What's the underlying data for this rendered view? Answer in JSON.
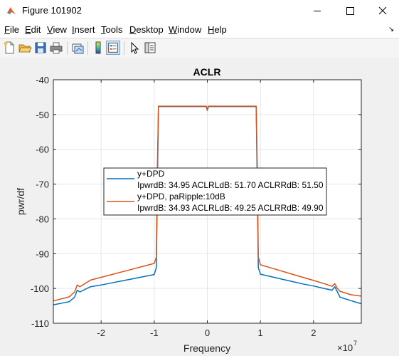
{
  "window": {
    "title": "Figure 101902",
    "icon": "matlab-icon",
    "controls": [
      "minimize-icon",
      "maximize-icon",
      "close-icon"
    ]
  },
  "menu": [
    {
      "label": "File",
      "underline": "F",
      "rest": "ile"
    },
    {
      "label": "Edit",
      "underline": "E",
      "rest": "dit"
    },
    {
      "label": "View",
      "underline": "V",
      "rest": "iew"
    },
    {
      "label": "Insert",
      "underline": "I",
      "rest": "nsert"
    },
    {
      "label": "Tools",
      "underline": "T",
      "rest": "ools"
    },
    {
      "label": "Desktop",
      "underline": "D",
      "rest": "esktop"
    },
    {
      "label": "Window",
      "underline": "W",
      "rest": "indow"
    },
    {
      "label": "Help",
      "underline": "H",
      "rest": "elp"
    }
  ],
  "toolbar": [
    "new-figure-icon",
    "open-file-icon",
    "save-icon",
    "print-icon",
    "link-plot-icon",
    "colorbar-icon",
    "legend-icon",
    "edit-plot-icon",
    "property-inspector-icon"
  ],
  "chart_data": {
    "type": "line",
    "title": "ACLR",
    "xlabel": "Frequency",
    "ylabel": "pwr/df",
    "x_exponent_label": "×10",
    "x_exponent": "7",
    "xlim": [
      -29000000.0,
      29000000.0
    ],
    "ylim": [
      -110,
      -40
    ],
    "xticks": [
      -20000000.0,
      -10000000.0,
      0,
      10000000.0,
      20000000.0
    ],
    "xtick_labels": [
      "-2",
      "-1",
      "0",
      "1",
      "2"
    ],
    "yticks": [
      -110,
      -100,
      -90,
      -80,
      -70,
      -60,
      -50,
      -40
    ],
    "ytick_labels": [
      "-110",
      "-100",
      "-90",
      "-80",
      "-70",
      "-60",
      "-50",
      "-40"
    ],
    "grid": true,
    "legend_position": "center-left",
    "series": [
      {
        "name": "y+DPD",
        "detail": "IpwrdB: 34.95 ACLRLdB: 51.70 ACLRRdB: 51.50",
        "color": "#0072bd",
        "x": [
          -29000000.0,
          -26000000.0,
          -25000000.0,
          -24500000.0,
          -24000000.0,
          -22000000.0,
          -20000000.0,
          -18000000.0,
          -16000000.0,
          -14000000.0,
          -12000000.0,
          -10000000.0,
          -9600000.0,
          -9400000.0,
          -9200000.0,
          -5000000.0,
          -200000.0,
          0,
          200000.0,
          5000000.0,
          9200000.0,
          9400000.0,
          9600000.0,
          10000000.0,
          12000000.0,
          14000000.0,
          16000000.0,
          18000000.0,
          20000000.0,
          22000000.0,
          23500000.0,
          24000000.0,
          24500000.0,
          25000000.0,
          27000000.0,
          29000000.0
        ],
        "y": [
          -104.7,
          -103.8,
          -102.5,
          -100.5,
          -101.0,
          -99.5,
          -99.0,
          -98.4,
          -97.8,
          -97.2,
          -96.6,
          -96.0,
          -94.0,
          -70.0,
          -47.7,
          -47.7,
          -47.7,
          -48.8,
          -47.7,
          -47.7,
          -47.7,
          -70.0,
          -94.0,
          -95.9,
          -96.6,
          -97.3,
          -98.0,
          -98.7,
          -99.3,
          -100.0,
          -100.5,
          -99.5,
          -101.0,
          -102.5,
          -103.5,
          -104.4
        ]
      },
      {
        "name": "y+DPD, paRipple:10dB",
        "detail": "IpwrdB: 34.93 ACLRLdB: 49.25 ACLRRdB: 49.90",
        "color": "#d95319",
        "x": [
          -29000000.0,
          -26000000.0,
          -25000000.0,
          -24500000.0,
          -24000000.0,
          -22000000.0,
          -20000000.0,
          -18000000.0,
          -16000000.0,
          -14000000.0,
          -12000000.0,
          -10000000.0,
          -9600000.0,
          -9400000.0,
          -9200000.0,
          -5000000.0,
          -200000.0,
          0,
          200000.0,
          5000000.0,
          9200000.0,
          9400000.0,
          9600000.0,
          10000000.0,
          12000000.0,
          14000000.0,
          16000000.0,
          18000000.0,
          20000000.0,
          22000000.0,
          23500000.0,
          24000000.0,
          24500000.0,
          25000000.0,
          27000000.0,
          29000000.0
        ],
        "y": [
          -103.6,
          -102.4,
          -101.0,
          -99.0,
          -99.5,
          -97.6,
          -96.8,
          -96.0,
          -95.2,
          -94.4,
          -93.6,
          -92.8,
          -91.0,
          -65.0,
          -47.6,
          -47.6,
          -47.6,
          -48.6,
          -47.6,
          -47.6,
          -47.6,
          -65.0,
          -91.0,
          -93.2,
          -94.1,
          -95.0,
          -95.9,
          -96.8,
          -97.7,
          -98.6,
          -99.4,
          -98.6,
          -100.0,
          -100.8,
          -101.8,
          -102.2
        ]
      }
    ]
  }
}
